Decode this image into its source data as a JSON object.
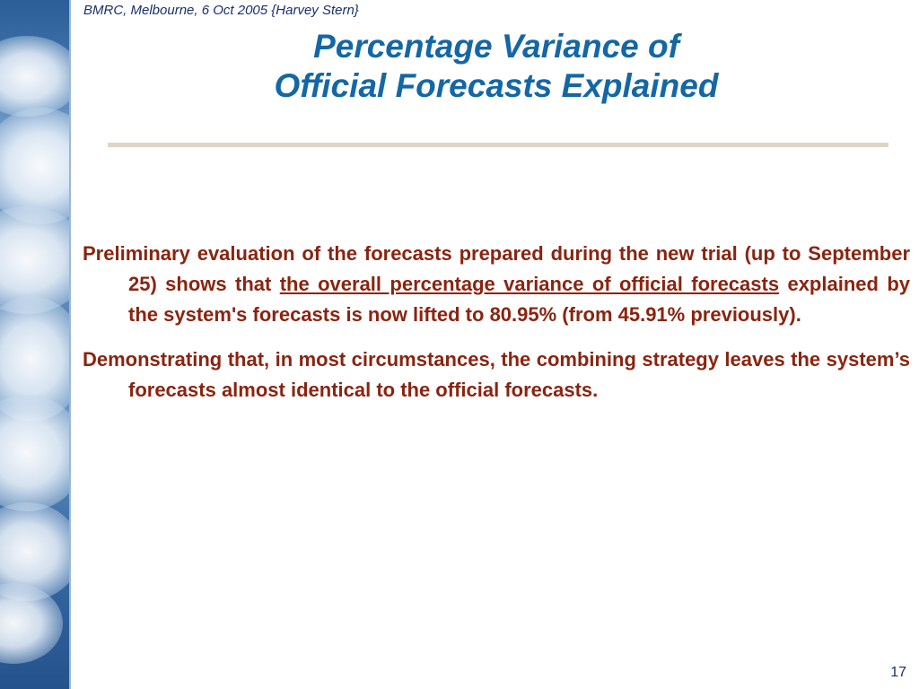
{
  "slide": {
    "header_meta": "BMRC, Melbourne, 6 Oct 2005 {Harvey Stern}",
    "title_line1": "Percentage Variance of",
    "title_line2": "Official Forecasts Explained",
    "page_number": "17"
  },
  "content": {
    "para1": {
      "prefix": "Preliminary evaluation of the forecasts prepared during the new trial (up to September 25) shows that ",
      "underlined": "the overall percentage variance of official forecasts",
      "suffix": " explained by the system's forecasts is now lifted to 80.95% (from 45.91% previously)."
    },
    "para2": "Demonstrating that, in most circumstances, the combining strategy leaves the system’s forecasts almost identical to the official forecasts."
  },
  "colors": {
    "title": "#1467a6",
    "body_text": "#8a2410",
    "header_meta": "#1a2f6e",
    "rule": "#ddd6c4"
  }
}
